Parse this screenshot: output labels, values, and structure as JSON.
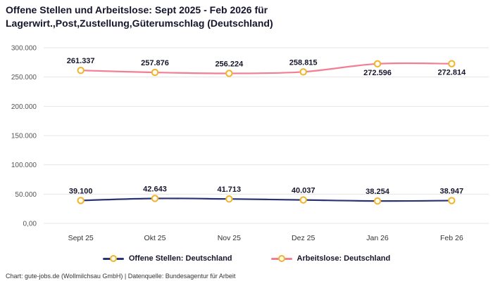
{
  "title": "Offene Stellen und Arbeitslose: Sept 2025 - Feb 2026 für\nLagerwirt.,Post,Zustellung,Güterumschlag (Deutschland)",
  "footer": "Chart: gute-jobs.de (Wollmilchsau GmbH) | Datenquelle: Bundesagentur für Arbeit",
  "chart_data": {
    "type": "line",
    "categories": [
      "Sept 25",
      "Okt 25",
      "Nov 25",
      "Dez 25",
      "Jan 26",
      "Feb 26"
    ],
    "series": [
      {
        "name": "Offene Stellen: Deutschland",
        "color": "#2a3473",
        "values": [
          39100,
          42643,
          41713,
          40037,
          38254,
          38947
        ],
        "label_pos": [
          "above",
          "above",
          "above",
          "above",
          "above",
          "above"
        ]
      },
      {
        "name": "Arbeitslose: Deutschland",
        "color": "#f27e93",
        "values": [
          261337,
          257876,
          256224,
          258815,
          272596,
          272814
        ],
        "label_pos": [
          "above",
          "above",
          "above",
          "above",
          "below",
          "below"
        ]
      }
    ],
    "y_ticks": [
      "0,00",
      "50.000",
      "100.000",
      "150.000",
      "200.000",
      "250.000",
      "300.000"
    ],
    "y_tick_values": [
      0,
      50000,
      100000,
      150000,
      200000,
      250000,
      300000
    ],
    "ylim": [
      0,
      300000
    ],
    "xlabel": "",
    "ylabel": "",
    "grid": true,
    "legend_position": "bottom",
    "marker": {
      "fill": "#fffdf0",
      "stroke": "#f0b32e"
    },
    "gridline_color": "#e5e5e5"
  }
}
